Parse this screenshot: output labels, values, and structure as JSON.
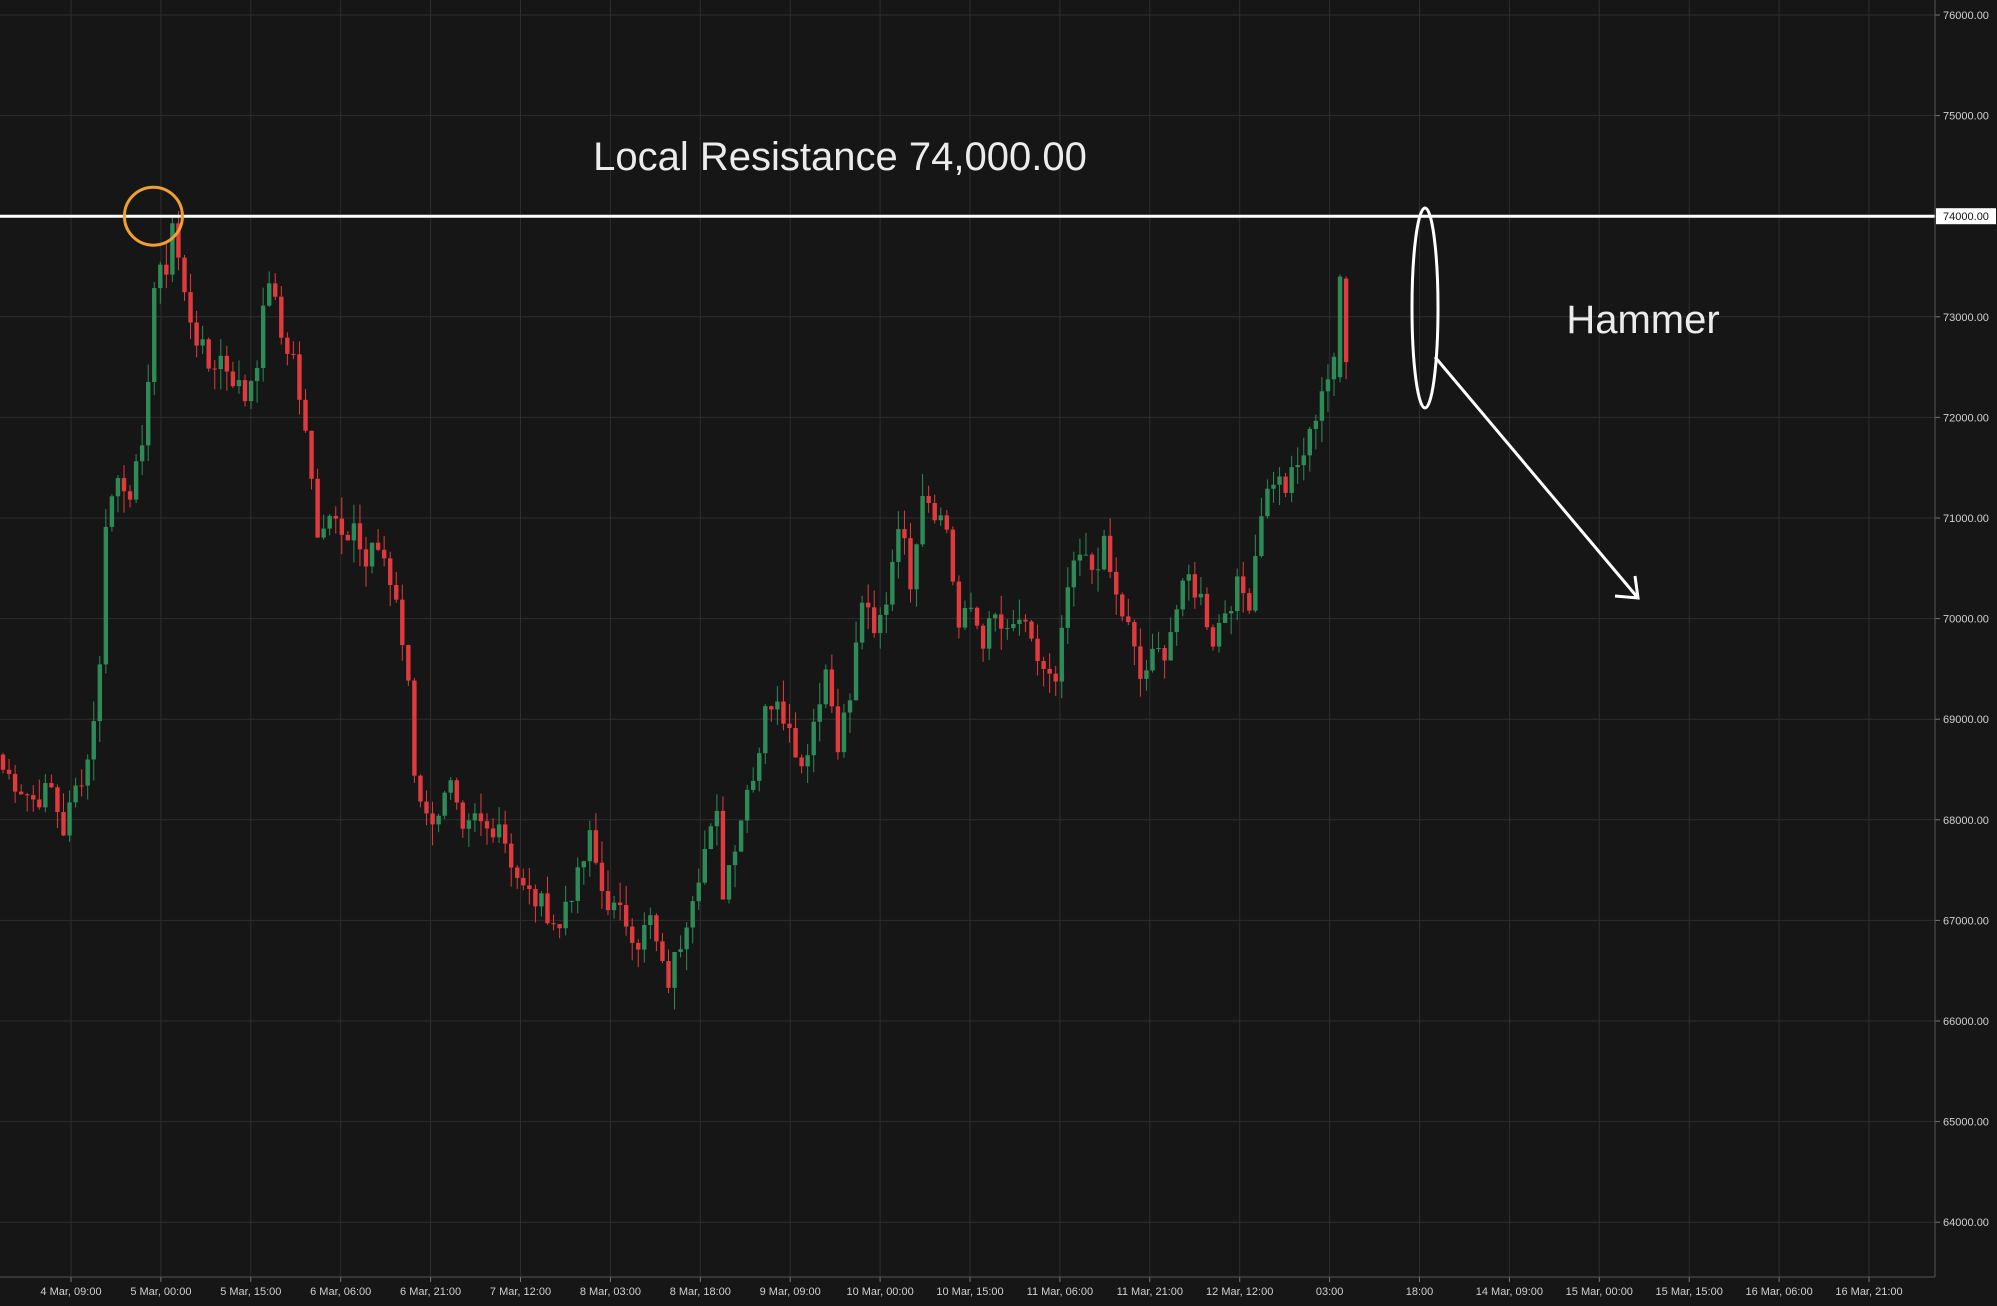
{
  "chart_data": {
    "type": "candlestick",
    "y_axis": {
      "ticks": [
        "76000.00",
        "75000.00",
        "74000.00",
        "73000.00",
        "72000.00",
        "71000.00",
        "70000.00",
        "69000.00",
        "68000.00",
        "67000.00",
        "66000.00",
        "65000.00",
        "64000.00"
      ],
      "range": [
        63500,
        76150
      ],
      "position": "right",
      "price_tag": "74000.00"
    },
    "x_axis": {
      "ticks": [
        "4 Mar, 09:00",
        "5 Mar, 00:00",
        "5 Mar, 15:00",
        "6 Mar, 06:00",
        "6 Mar, 21:00",
        "7 Mar, 12:00",
        "8 Mar, 03:00",
        "8 Mar, 18:00",
        "9 Mar, 09:00",
        "10 Mar, 00:00",
        "10 Mar, 15:00",
        "11 Mar, 06:00",
        "11 Mar, 21:00",
        "12 Mar, 12:00",
        "03:00",
        "18:00",
        "14 Mar, 09:00",
        "15 Mar, 00:00",
        "15 Mar, 15:00",
        "16 Mar, 06:00",
        "16 Mar, 21:00"
      ],
      "start": "4 Mar, 01:00",
      "candle_interval_hours": 1
    },
    "grid": true,
    "colors": {
      "up": "#2e8b57",
      "down": "#e03a3e",
      "background": "#161616",
      "grid": "#2e2e2e",
      "resistance": "#ffffff",
      "highlight": "#f0a030"
    },
    "close_path": [
      [
        0,
        68500
      ],
      [
        5,
        68200
      ],
      [
        8,
        68300
      ],
      [
        10,
        67900
      ],
      [
        12,
        68300
      ],
      [
        14,
        68600
      ],
      [
        16,
        69500
      ],
      [
        17,
        71000
      ],
      [
        19,
        71400
      ],
      [
        21,
        71300
      ],
      [
        23,
        71600
      ],
      [
        25,
        73300
      ],
      [
        27,
        73500
      ],
      [
        28,
        73950
      ],
      [
        30,
        73200
      ],
      [
        32,
        72800
      ],
      [
        34,
        72500
      ],
      [
        36,
        72600
      ],
      [
        38,
        72400
      ],
      [
        40,
        72200
      ],
      [
        42,
        72600
      ],
      [
        44,
        73400
      ],
      [
        46,
        72800
      ],
      [
        48,
        72600
      ],
      [
        50,
        71800
      ],
      [
        52,
        70900
      ],
      [
        55,
        71100
      ],
      [
        57,
        70800
      ],
      [
        58,
        70900
      ],
      [
        60,
        70400
      ],
      [
        61,
        70800
      ],
      [
        63,
        70600
      ],
      [
        65,
        70100
      ],
      [
        67,
        69400
      ],
      [
        68,
        68500
      ],
      [
        70,
        68000
      ],
      [
        72,
        68100
      ],
      [
        74,
        68300
      ],
      [
        76,
        67800
      ],
      [
        78,
        68000
      ],
      [
        80,
        67900
      ],
      [
        82,
        68000
      ],
      [
        84,
        67600
      ],
      [
        86,
        67300
      ],
      [
        88,
        67200
      ],
      [
        90,
        67100
      ],
      [
        92,
        66900
      ],
      [
        93,
        67200
      ],
      [
        95,
        67400
      ],
      [
        97,
        67800
      ],
      [
        99,
        67300
      ],
      [
        101,
        67100
      ],
      [
        103,
        67000
      ],
      [
        105,
        66800
      ],
      [
        107,
        67000
      ],
      [
        109,
        66500
      ],
      [
        110,
        66400
      ],
      [
        112,
        66800
      ],
      [
        114,
        67300
      ],
      [
        116,
        67700
      ],
      [
        118,
        68000
      ],
      [
        119,
        67300
      ],
      [
        121,
        67800
      ],
      [
        123,
        68300
      ],
      [
        125,
        68700
      ],
      [
        126,
        69200
      ],
      [
        128,
        69100
      ],
      [
        130,
        69000
      ],
      [
        132,
        68500
      ],
      [
        134,
        69000
      ],
      [
        136,
        69500
      ],
      [
        138,
        68800
      ],
      [
        140,
        69200
      ],
      [
        142,
        70200
      ],
      [
        144,
        69800
      ],
      [
        146,
        70200
      ],
      [
        148,
        71000
      ],
      [
        149,
        70700
      ],
      [
        150,
        70400
      ],
      [
        152,
        71300
      ],
      [
        154,
        71100
      ],
      [
        156,
        70900
      ],
      [
        158,
        69900
      ],
      [
        160,
        70100
      ],
      [
        162,
        69800
      ],
      [
        164,
        70000
      ],
      [
        166,
        69800
      ],
      [
        168,
        70000
      ],
      [
        170,
        69700
      ],
      [
        172,
        69500
      ],
      [
        174,
        69300
      ],
      [
        176,
        70300
      ],
      [
        178,
        70600
      ],
      [
        180,
        70500
      ],
      [
        182,
        70700
      ],
      [
        184,
        70200
      ],
      [
        186,
        69900
      ],
      [
        188,
        69400
      ],
      [
        190,
        69600
      ],
      [
        192,
        69700
      ],
      [
        194,
        70100
      ],
      [
        196,
        70400
      ],
      [
        198,
        70200
      ],
      [
        200,
        69800
      ],
      [
        202,
        70100
      ],
      [
        204,
        70300
      ],
      [
        206,
        70200
      ],
      [
        208,
        71100
      ],
      [
        210,
        71400
      ],
      [
        212,
        71300
      ],
      [
        214,
        71500
      ],
      [
        216,
        71800
      ],
      [
        218,
        72300
      ],
      [
        220,
        72500
      ],
      [
        221,
        73400
      ],
      [
        222,
        72600
      ]
    ],
    "annotations": [
      {
        "text": "Local Resistance 74,000.00",
        "kind": "horizontal-line",
        "value": 74000
      },
      {
        "text": "Hammer",
        "kind": "ellipse",
        "at_candle": 222
      },
      {
        "text": "",
        "kind": "circle",
        "at_candle": 28
      },
      {
        "text": "",
        "kind": "arrow",
        "from_candle": 222,
        "from_value": 72600,
        "to_candle": 252,
        "to_value": 70200
      }
    ]
  }
}
